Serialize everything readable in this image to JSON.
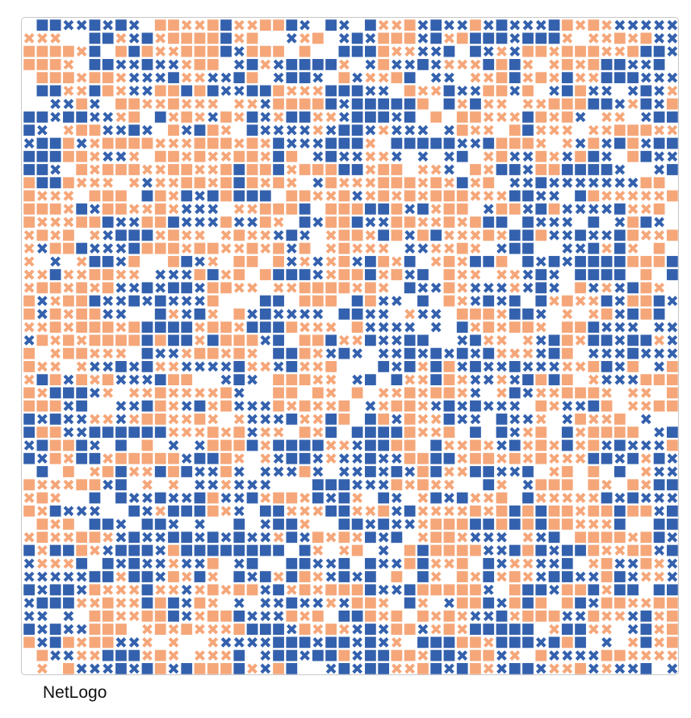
{
  "app": {
    "name": "NetLogo"
  },
  "world": {
    "columns": 50,
    "rows": 50,
    "colors": {
      "group_a": "#3461ad",
      "group_b": "#f5a77a",
      "background": "#ffffff"
    },
    "turtle_shapes": [
      "square",
      "x"
    ],
    "shape_icons": {
      "square": "square-turtle-icon",
      "x": "x-turtle-icon"
    }
  }
}
